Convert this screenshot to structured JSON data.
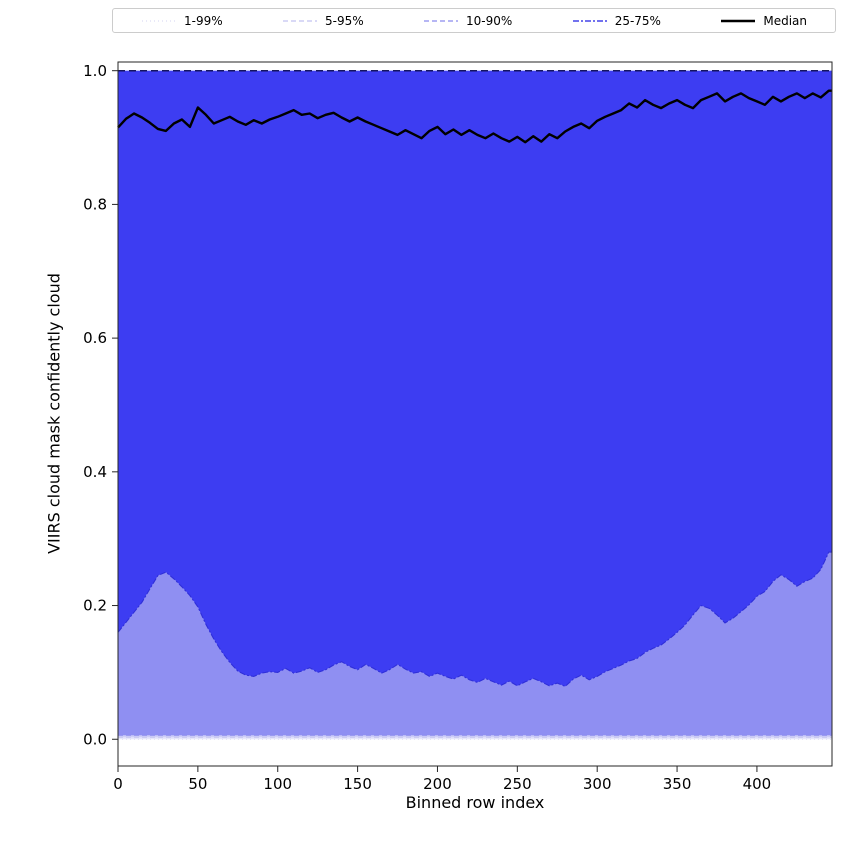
{
  "chart_data": {
    "type": "area",
    "title": "",
    "xlabel": "Binned row index",
    "ylabel": "VIIRS cloud mask confidently cloud",
    "xlim": [
      0,
      447
    ],
    "ylim": [
      -0.04,
      1.013
    ],
    "xticks": [
      0,
      50,
      100,
      150,
      200,
      250,
      300,
      350,
      400
    ],
    "yticks": [
      0.0,
      0.2,
      0.4,
      0.6,
      0.8,
      1.0
    ],
    "x": [
      0,
      5,
      10,
      15,
      20,
      25,
      30,
      35,
      40,
      45,
      50,
      55,
      60,
      65,
      70,
      75,
      80,
      85,
      90,
      95,
      100,
      105,
      110,
      115,
      120,
      125,
      130,
      135,
      140,
      145,
      150,
      155,
      160,
      165,
      170,
      175,
      180,
      185,
      190,
      195,
      200,
      205,
      210,
      215,
      220,
      225,
      230,
      235,
      240,
      245,
      250,
      255,
      260,
      265,
      270,
      275,
      280,
      285,
      290,
      295,
      300,
      305,
      310,
      315,
      320,
      325,
      330,
      335,
      340,
      345,
      350,
      355,
      360,
      365,
      370,
      375,
      380,
      385,
      390,
      395,
      400,
      405,
      410,
      415,
      420,
      425,
      430,
      435,
      440,
      445
    ],
    "p25": [
      0.16,
      0.175,
      0.19,
      0.205,
      0.225,
      0.245,
      0.25,
      0.24,
      0.228,
      0.215,
      0.198,
      0.172,
      0.15,
      0.131,
      0.115,
      0.102,
      0.096,
      0.094,
      0.099,
      0.101,
      0.1,
      0.106,
      0.099,
      0.102,
      0.107,
      0.1,
      0.104,
      0.111,
      0.116,
      0.109,
      0.104,
      0.112,
      0.106,
      0.099,
      0.104,
      0.112,
      0.105,
      0.099,
      0.101,
      0.094,
      0.099,
      0.094,
      0.09,
      0.096,
      0.089,
      0.085,
      0.091,
      0.086,
      0.081,
      0.087,
      0.08,
      0.086,
      0.091,
      0.086,
      0.08,
      0.084,
      0.079,
      0.09,
      0.096,
      0.089,
      0.094,
      0.101,
      0.106,
      0.111,
      0.117,
      0.121,
      0.13,
      0.136,
      0.141,
      0.15,
      0.16,
      0.171,
      0.186,
      0.2,
      0.196,
      0.186,
      0.174,
      0.181,
      0.191,
      0.201,
      0.214,
      0.221,
      0.236,
      0.246,
      0.239,
      0.229,
      0.236,
      0.241,
      0.254,
      0.28
    ],
    "median": {
      "name": "Median",
      "color": "#000000",
      "width": 2.4,
      "values": [
        0.915,
        0.928,
        0.936,
        0.93,
        0.922,
        0.913,
        0.91,
        0.921,
        0.927,
        0.916,
        0.945,
        0.934,
        0.921,
        0.926,
        0.931,
        0.924,
        0.919,
        0.926,
        0.921,
        0.927,
        0.931,
        0.936,
        0.941,
        0.934,
        0.936,
        0.929,
        0.934,
        0.937,
        0.93,
        0.924,
        0.93,
        0.924,
        0.919,
        0.914,
        0.909,
        0.904,
        0.911,
        0.905,
        0.899,
        0.91,
        0.916,
        0.905,
        0.912,
        0.904,
        0.911,
        0.904,
        0.899,
        0.906,
        0.899,
        0.894,
        0.901,
        0.893,
        0.902,
        0.894,
        0.905,
        0.899,
        0.909,
        0.916,
        0.921,
        0.914,
        0.925,
        0.931,
        0.936,
        0.941,
        0.951,
        0.945,
        0.956,
        0.949,
        0.944,
        0.951,
        0.956,
        0.949,
        0.944,
        0.956,
        0.961,
        0.966,
        0.954,
        0.961,
        0.966,
        0.959,
        0.954,
        0.949,
        0.961,
        0.954,
        0.961,
        0.966,
        0.959,
        0.966,
        0.96,
        0.97
      ]
    },
    "bands": [
      {
        "name": "1-99%",
        "low": 0.0,
        "high": 1.0,
        "fill": "#e6e6fb",
        "line_color": "#dcdcf4",
        "dash": "1 3",
        "line_width": 1.0
      },
      {
        "name": "5-95%",
        "low": 0.003,
        "high": 1.0,
        "fill": "#cdcdf8",
        "line_color": "#c2c2f0",
        "dash": "5 3",
        "line_width": 1.0
      },
      {
        "name": "10-90%",
        "low": 0.006,
        "high": 1.0,
        "fill": "#8f8ff2",
        "line_color": "#8a8aee",
        "dash": "5 3",
        "line_width": 1.0
      },
      {
        "name": "25-75%",
        "low": "p25",
        "high": 1.0,
        "fill": "#3d3df2",
        "line_color": "#2f2fd8",
        "dash": "6 2 2 2",
        "line_width": 1.1
      }
    ],
    "top_line": {
      "y": 1.0,
      "color": "#15155e",
      "dash": "7 4",
      "width": 1.5
    },
    "legend": [
      {
        "label": "1-99%",
        "color": "#dcdcf4",
        "dash": "1 3",
        "width": 1.2
      },
      {
        "label": "5-95%",
        "color": "#c2c2f0",
        "dash": "5 3",
        "width": 1.2
      },
      {
        "label": "10-90%",
        "color": "#8a8aee",
        "dash": "5 3",
        "width": 1.2
      },
      {
        "label": "25-75%",
        "color": "#4444e8",
        "dash": "6 2 2 2",
        "width": 1.4
      },
      {
        "label": "Median",
        "color": "#000000",
        "dash": "",
        "width": 2.6
      }
    ],
    "axis_color": "#262626",
    "tick_font_size": 15,
    "label_font_size": 16
  }
}
